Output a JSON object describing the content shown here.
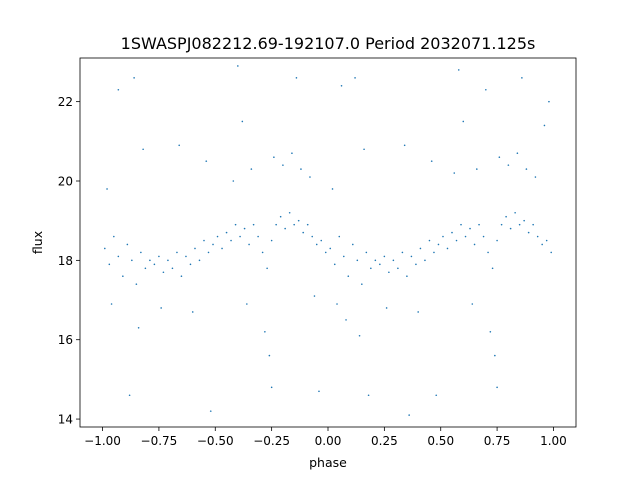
{
  "chart_data": {
    "type": "scatter",
    "title": "1SWASPJ082212.69-192107.0 Period 2032071.125s",
    "xlabel": "phase",
    "ylabel": "flux",
    "xlim": [
      -1.1,
      1.1
    ],
    "ylim": [
      13.8,
      23.1
    ],
    "grid": false,
    "legend": "none",
    "point_color": "#1f77b4",
    "x_ticks": [
      {
        "value": -1.0,
        "label": "−1.00"
      },
      {
        "value": -0.75,
        "label": "−0.75"
      },
      {
        "value": -0.5,
        "label": "−0.50"
      },
      {
        "value": -0.25,
        "label": "−0.25"
      },
      {
        "value": 0.0,
        "label": "0.00"
      },
      {
        "value": 0.25,
        "label": "0.25"
      },
      {
        "value": 0.5,
        "label": "0.50"
      },
      {
        "value": 0.75,
        "label": "0.75"
      },
      {
        "value": 1.0,
        "label": "1.00"
      }
    ],
    "y_ticks": [
      {
        "value": 14,
        "label": "14"
      },
      {
        "value": 16,
        "label": "16"
      },
      {
        "value": 18,
        "label": "18"
      },
      {
        "value": 20,
        "label": "20"
      },
      {
        "value": 22,
        "label": "22"
      }
    ],
    "series": [
      {
        "values": [
          {
            "x": -0.99,
            "y": 18.3
          },
          {
            "x": -0.97,
            "y": 17.9
          },
          {
            "x": -0.95,
            "y": 18.6
          },
          {
            "x": -0.93,
            "y": 18.1
          },
          {
            "x": -0.91,
            "y": 17.6
          },
          {
            "x": -0.89,
            "y": 18.4
          },
          {
            "x": -0.87,
            "y": 18.0
          },
          {
            "x": -0.85,
            "y": 17.4
          },
          {
            "x": -0.83,
            "y": 18.2
          },
          {
            "x": -0.81,
            "y": 17.8
          },
          {
            "x": -0.79,
            "y": 18.0
          },
          {
            "x": -0.77,
            "y": 17.9
          },
          {
            "x": -0.75,
            "y": 18.1
          },
          {
            "x": -0.73,
            "y": 17.7
          },
          {
            "x": -0.71,
            "y": 18.0
          },
          {
            "x": -0.69,
            "y": 17.8
          },
          {
            "x": -0.67,
            "y": 18.2
          },
          {
            "x": -0.65,
            "y": 17.6
          },
          {
            "x": -0.63,
            "y": 18.1
          },
          {
            "x": -0.61,
            "y": 17.9
          },
          {
            "x": -0.59,
            "y": 18.3
          },
          {
            "x": -0.57,
            "y": 18.0
          },
          {
            "x": -0.55,
            "y": 18.5
          },
          {
            "x": -0.53,
            "y": 18.2
          },
          {
            "x": -0.51,
            "y": 18.4
          },
          {
            "x": -0.49,
            "y": 18.6
          },
          {
            "x": -0.47,
            "y": 18.3
          },
          {
            "x": -0.45,
            "y": 18.7
          },
          {
            "x": -0.43,
            "y": 18.5
          },
          {
            "x": -0.41,
            "y": 18.9
          },
          {
            "x": -0.39,
            "y": 18.6
          },
          {
            "x": -0.37,
            "y": 18.8
          },
          {
            "x": -0.35,
            "y": 18.4
          },
          {
            "x": -0.33,
            "y": 18.9
          },
          {
            "x": -0.31,
            "y": 18.6
          },
          {
            "x": -0.29,
            "y": 18.2
          },
          {
            "x": -0.27,
            "y": 17.8
          },
          {
            "x": -0.25,
            "y": 18.5
          },
          {
            "x": -0.23,
            "y": 18.9
          },
          {
            "x": -0.21,
            "y": 19.1
          },
          {
            "x": -0.19,
            "y": 18.8
          },
          {
            "x": -0.17,
            "y": 19.2
          },
          {
            "x": -0.15,
            "y": 18.9
          },
          {
            "x": -0.13,
            "y": 19.0
          },
          {
            "x": -0.11,
            "y": 18.7
          },
          {
            "x": -0.09,
            "y": 18.9
          },
          {
            "x": -0.07,
            "y": 18.6
          },
          {
            "x": -0.05,
            "y": 18.4
          },
          {
            "x": -0.03,
            "y": 18.5
          },
          {
            "x": -0.01,
            "y": 18.2
          },
          {
            "x": 0.01,
            "y": 18.3
          },
          {
            "x": 0.03,
            "y": 17.9
          },
          {
            "x": 0.05,
            "y": 18.6
          },
          {
            "x": 0.07,
            "y": 18.1
          },
          {
            "x": 0.09,
            "y": 17.6
          },
          {
            "x": 0.11,
            "y": 18.4
          },
          {
            "x": 0.13,
            "y": 18.0
          },
          {
            "x": 0.15,
            "y": 17.4
          },
          {
            "x": 0.17,
            "y": 18.2
          },
          {
            "x": 0.19,
            "y": 17.8
          },
          {
            "x": 0.21,
            "y": 18.0
          },
          {
            "x": 0.23,
            "y": 17.9
          },
          {
            "x": 0.25,
            "y": 18.1
          },
          {
            "x": 0.27,
            "y": 17.7
          },
          {
            "x": 0.29,
            "y": 18.0
          },
          {
            "x": 0.31,
            "y": 17.8
          },
          {
            "x": 0.33,
            "y": 18.2
          },
          {
            "x": 0.35,
            "y": 17.6
          },
          {
            "x": 0.37,
            "y": 18.1
          },
          {
            "x": 0.39,
            "y": 17.9
          },
          {
            "x": 0.41,
            "y": 18.3
          },
          {
            "x": 0.43,
            "y": 18.0
          },
          {
            "x": 0.45,
            "y": 18.5
          },
          {
            "x": 0.47,
            "y": 18.2
          },
          {
            "x": 0.49,
            "y": 18.4
          },
          {
            "x": 0.51,
            "y": 18.6
          },
          {
            "x": 0.53,
            "y": 18.3
          },
          {
            "x": 0.55,
            "y": 18.7
          },
          {
            "x": 0.57,
            "y": 18.5
          },
          {
            "x": 0.59,
            "y": 18.9
          },
          {
            "x": 0.61,
            "y": 18.6
          },
          {
            "x": 0.63,
            "y": 18.8
          },
          {
            "x": 0.65,
            "y": 18.4
          },
          {
            "x": 0.67,
            "y": 18.9
          },
          {
            "x": 0.69,
            "y": 18.6
          },
          {
            "x": 0.71,
            "y": 18.2
          },
          {
            "x": 0.73,
            "y": 17.8
          },
          {
            "x": 0.75,
            "y": 18.5
          },
          {
            "x": 0.77,
            "y": 18.9
          },
          {
            "x": 0.79,
            "y": 19.1
          },
          {
            "x": 0.81,
            "y": 18.8
          },
          {
            "x": 0.83,
            "y": 19.2
          },
          {
            "x": 0.85,
            "y": 18.9
          },
          {
            "x": 0.87,
            "y": 19.0
          },
          {
            "x": 0.89,
            "y": 18.7
          },
          {
            "x": 0.91,
            "y": 18.9
          },
          {
            "x": 0.93,
            "y": 18.6
          },
          {
            "x": 0.95,
            "y": 18.4
          },
          {
            "x": 0.97,
            "y": 18.5
          },
          {
            "x": 0.99,
            "y": 18.2
          },
          {
            "x": -0.98,
            "y": 19.8
          },
          {
            "x": -0.96,
            "y": 16.9
          },
          {
            "x": -0.84,
            "y": 16.3
          },
          {
            "x": -0.82,
            "y": 20.8
          },
          {
            "x": -0.93,
            "y": 22.3
          },
          {
            "x": -0.88,
            "y": 14.6
          },
          {
            "x": -0.86,
            "y": 22.6
          },
          {
            "x": -0.74,
            "y": 16.8
          },
          {
            "x": -0.66,
            "y": 20.9
          },
          {
            "x": -0.6,
            "y": 16.7
          },
          {
            "x": -0.54,
            "y": 20.5
          },
          {
            "x": -0.52,
            "y": 14.2
          },
          {
            "x": -0.42,
            "y": 20.0
          },
          {
            "x": -0.4,
            "y": 22.9
          },
          {
            "x": -0.38,
            "y": 21.5
          },
          {
            "x": -0.36,
            "y": 16.9
          },
          {
            "x": -0.34,
            "y": 20.3
          },
          {
            "x": -0.28,
            "y": 16.2
          },
          {
            "x": -0.26,
            "y": 15.6
          },
          {
            "x": -0.25,
            "y": 14.8
          },
          {
            "x": -0.24,
            "y": 20.6
          },
          {
            "x": -0.2,
            "y": 20.4
          },
          {
            "x": -0.16,
            "y": 20.7
          },
          {
            "x": -0.14,
            "y": 22.6
          },
          {
            "x": -0.12,
            "y": 20.3
          },
          {
            "x": -0.08,
            "y": 20.1
          },
          {
            "x": -0.06,
            "y": 17.1
          },
          {
            "x": -0.04,
            "y": 14.7
          },
          {
            "x": 0.02,
            "y": 19.8
          },
          {
            "x": 0.04,
            "y": 16.9
          },
          {
            "x": 0.06,
            "y": 22.4
          },
          {
            "x": 0.08,
            "y": 16.5
          },
          {
            "x": 0.12,
            "y": 22.6
          },
          {
            "x": 0.14,
            "y": 16.1
          },
          {
            "x": 0.16,
            "y": 20.8
          },
          {
            "x": 0.18,
            "y": 14.6
          },
          {
            "x": 0.26,
            "y": 16.8
          },
          {
            "x": 0.34,
            "y": 20.9
          },
          {
            "x": 0.36,
            "y": 14.1
          },
          {
            "x": 0.4,
            "y": 16.7
          },
          {
            "x": 0.46,
            "y": 20.5
          },
          {
            "x": 0.48,
            "y": 14.6
          },
          {
            "x": 0.56,
            "y": 20.2
          },
          {
            "x": 0.58,
            "y": 22.8
          },
          {
            "x": 0.6,
            "y": 21.5
          },
          {
            "x": 0.64,
            "y": 16.9
          },
          {
            "x": 0.66,
            "y": 20.3
          },
          {
            "x": 0.7,
            "y": 22.3
          },
          {
            "x": 0.72,
            "y": 16.2
          },
          {
            "x": 0.74,
            "y": 15.6
          },
          {
            "x": 0.75,
            "y": 14.8
          },
          {
            "x": 0.76,
            "y": 20.6
          },
          {
            "x": 0.8,
            "y": 20.4
          },
          {
            "x": 0.84,
            "y": 20.7
          },
          {
            "x": 0.86,
            "y": 22.6
          },
          {
            "x": 0.88,
            "y": 20.3
          },
          {
            "x": 0.92,
            "y": 20.1
          },
          {
            "x": 0.96,
            "y": 21.4
          },
          {
            "x": 0.98,
            "y": 22.0
          }
        ]
      }
    ]
  }
}
